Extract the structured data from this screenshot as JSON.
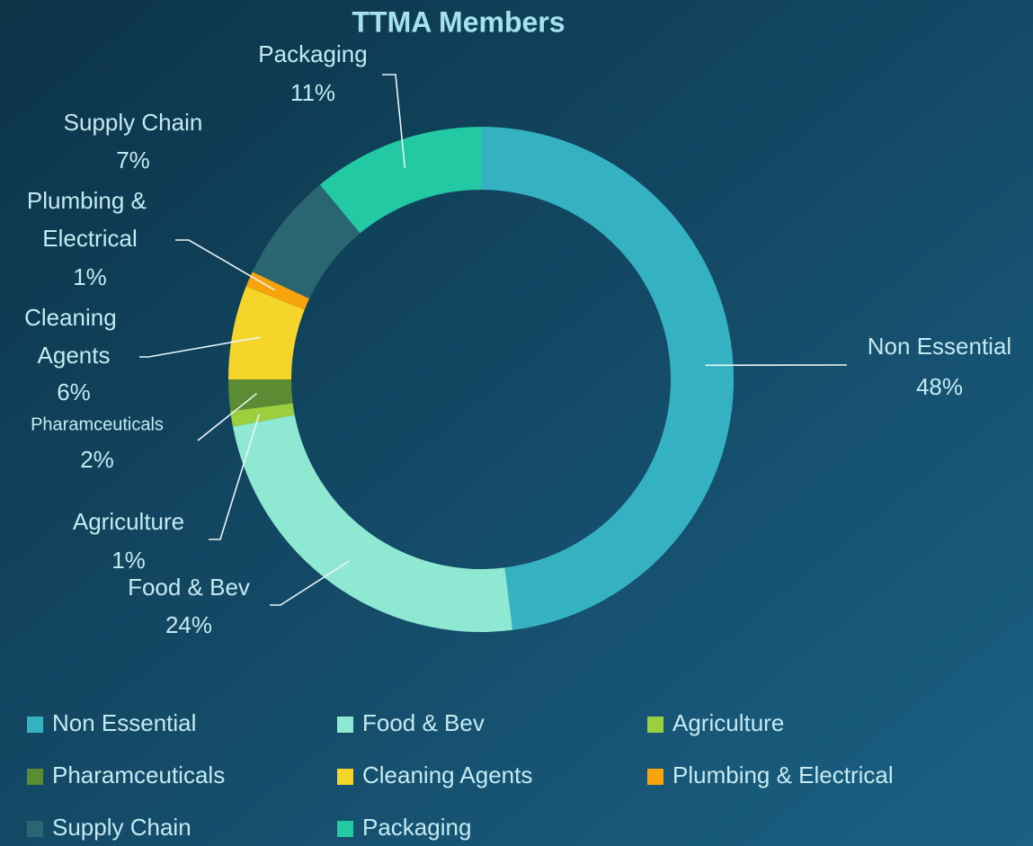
{
  "chart_data": {
    "type": "pie",
    "title": "TTMA Members",
    "categories": [
      "Non Essential",
      "Food & Bev",
      "Agriculture",
      "Pharamceuticals",
      "Cleaning Agents",
      "Plumbing & Electrical",
      "Supply Chain",
      "Packaging"
    ],
    "values": [
      48,
      24,
      1,
      2,
      6,
      1,
      7,
      11
    ],
    "value_labels": [
      "48%",
      "24%",
      "1%",
      "2%",
      "6%",
      "1%",
      "7%",
      "11%"
    ],
    "colors": [
      "#35b2c2",
      "#8fe8d2",
      "#9ccf3e",
      "#5b8b32",
      "#f6d52a",
      "#f7a30c",
      "#2a6672",
      "#22c9a2"
    ],
    "legend": "bottom"
  }
}
